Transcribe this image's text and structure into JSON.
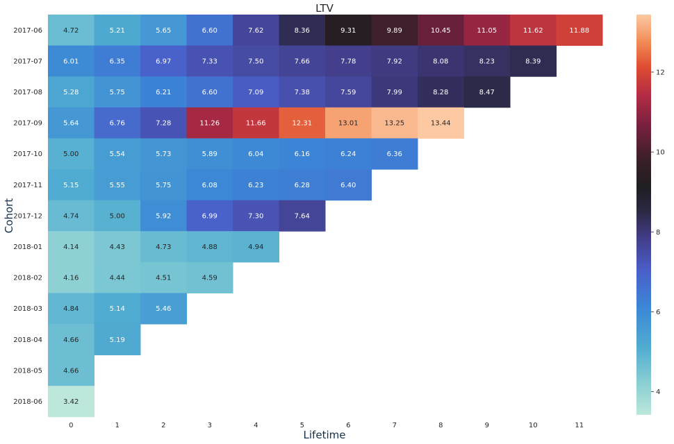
{
  "chart_data": {
    "type": "heatmap",
    "title": "LTV",
    "xlabel": "Lifetime",
    "ylabel": "Cohort",
    "x": [
      "0",
      "1",
      "2",
      "3",
      "4",
      "5",
      "6",
      "7",
      "8",
      "9",
      "10",
      "11"
    ],
    "y": [
      "2017-06",
      "2017-07",
      "2017-08",
      "2017-09",
      "2017-10",
      "2017-11",
      "2017-12",
      "2018-01",
      "2018-02",
      "2018-03",
      "2018-04",
      "2018-05",
      "2018-06"
    ],
    "values": [
      [
        "4.72",
        "5.21",
        "5.65",
        "6.60",
        "7.62",
        "8.36",
        "9.31",
        "9.89",
        "10.45",
        "11.05",
        "11.62",
        "11.88"
      ],
      [
        "6.01",
        "6.35",
        "6.97",
        "7.33",
        "7.50",
        "7.66",
        "7.78",
        "7.92",
        "8.08",
        "8.23",
        "8.39"
      ],
      [
        "5.28",
        "5.75",
        "6.21",
        "6.60",
        "7.09",
        "7.38",
        "7.59",
        "7.99",
        "8.28",
        "8.47"
      ],
      [
        "5.64",
        "6.76",
        "7.28",
        "11.26",
        "11.66",
        "12.31",
        "13.01",
        "13.25",
        "13.44"
      ],
      [
        "5.00",
        "5.54",
        "5.73",
        "5.89",
        "6.04",
        "6.16",
        "6.24",
        "6.36"
      ],
      [
        "5.15",
        "5.55",
        "5.75",
        "6.08",
        "6.23",
        "6.28",
        "6.40"
      ],
      [
        "4.74",
        "5.00",
        "5.92",
        "6.99",
        "7.30",
        "7.64"
      ],
      [
        "4.14",
        "4.43",
        "4.73",
        "4.88",
        "4.94"
      ],
      [
        "4.16",
        "4.44",
        "4.51",
        "4.59"
      ],
      [
        "4.84",
        "5.14",
        "5.46"
      ],
      [
        "4.66",
        "5.19"
      ],
      [
        "4.66"
      ],
      [
        "3.42"
      ]
    ],
    "colorbar": {
      "min": 3.42,
      "max": 13.44,
      "ticks": [
        "4",
        "6",
        "8",
        "10",
        "12"
      ],
      "colormap": "icefire"
    },
    "grid": false,
    "legend": "colorbar-right"
  }
}
